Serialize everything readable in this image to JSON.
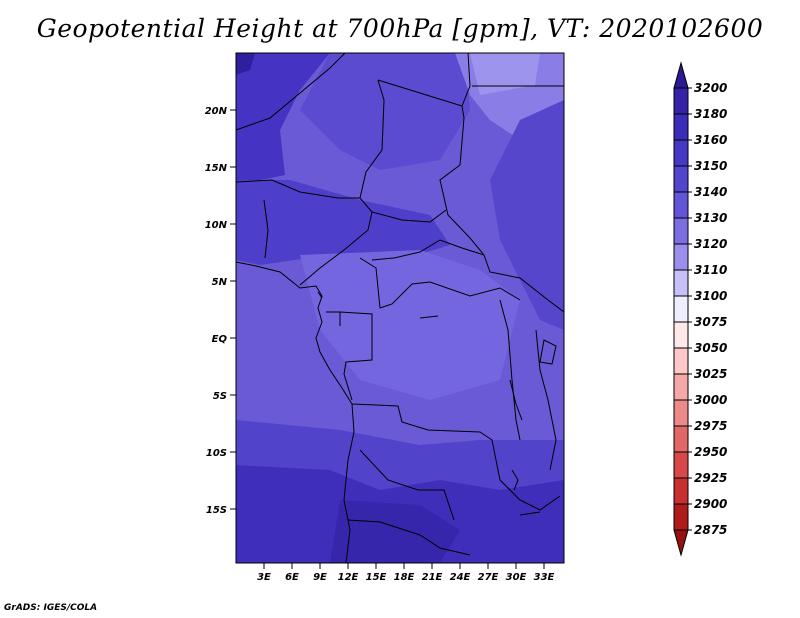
{
  "title": "Geopotential Height at 700hPa [gpm], VT: 2020102600",
  "credit": "GrADS: IGES/COLA",
  "lat_labels": [
    "20N",
    "15N",
    "10N",
    "5N",
    "EQ",
    "5S",
    "10S",
    "15S"
  ],
  "lon_labels": [
    "3E",
    "6E",
    "9E",
    "12E",
    "15E",
    "18E",
    "21E",
    "24E",
    "27E",
    "30E",
    "33E"
  ],
  "colorbar": {
    "levels": [
      "3200",
      "3180",
      "3160",
      "3150",
      "3140",
      "3130",
      "3120",
      "3110",
      "3100",
      "3075",
      "3050",
      "3025",
      "3000",
      "2975",
      "2950",
      "2925",
      "2900",
      "2875"
    ],
    "colors": [
      "#2a1a96",
      "#3422a8",
      "#3c2cba",
      "#4637c6",
      "#5445cf",
      "#6355d8",
      "#7a6ee2",
      "#9a90ec",
      "#c5c0f6",
      "#eeeeff",
      "#ffe8e8",
      "#fcc8c8",
      "#f4a8a8",
      "#ec8a8a",
      "#e26868",
      "#d84848",
      "#c83030",
      "#b01c1c",
      "#981010"
    ]
  }
}
